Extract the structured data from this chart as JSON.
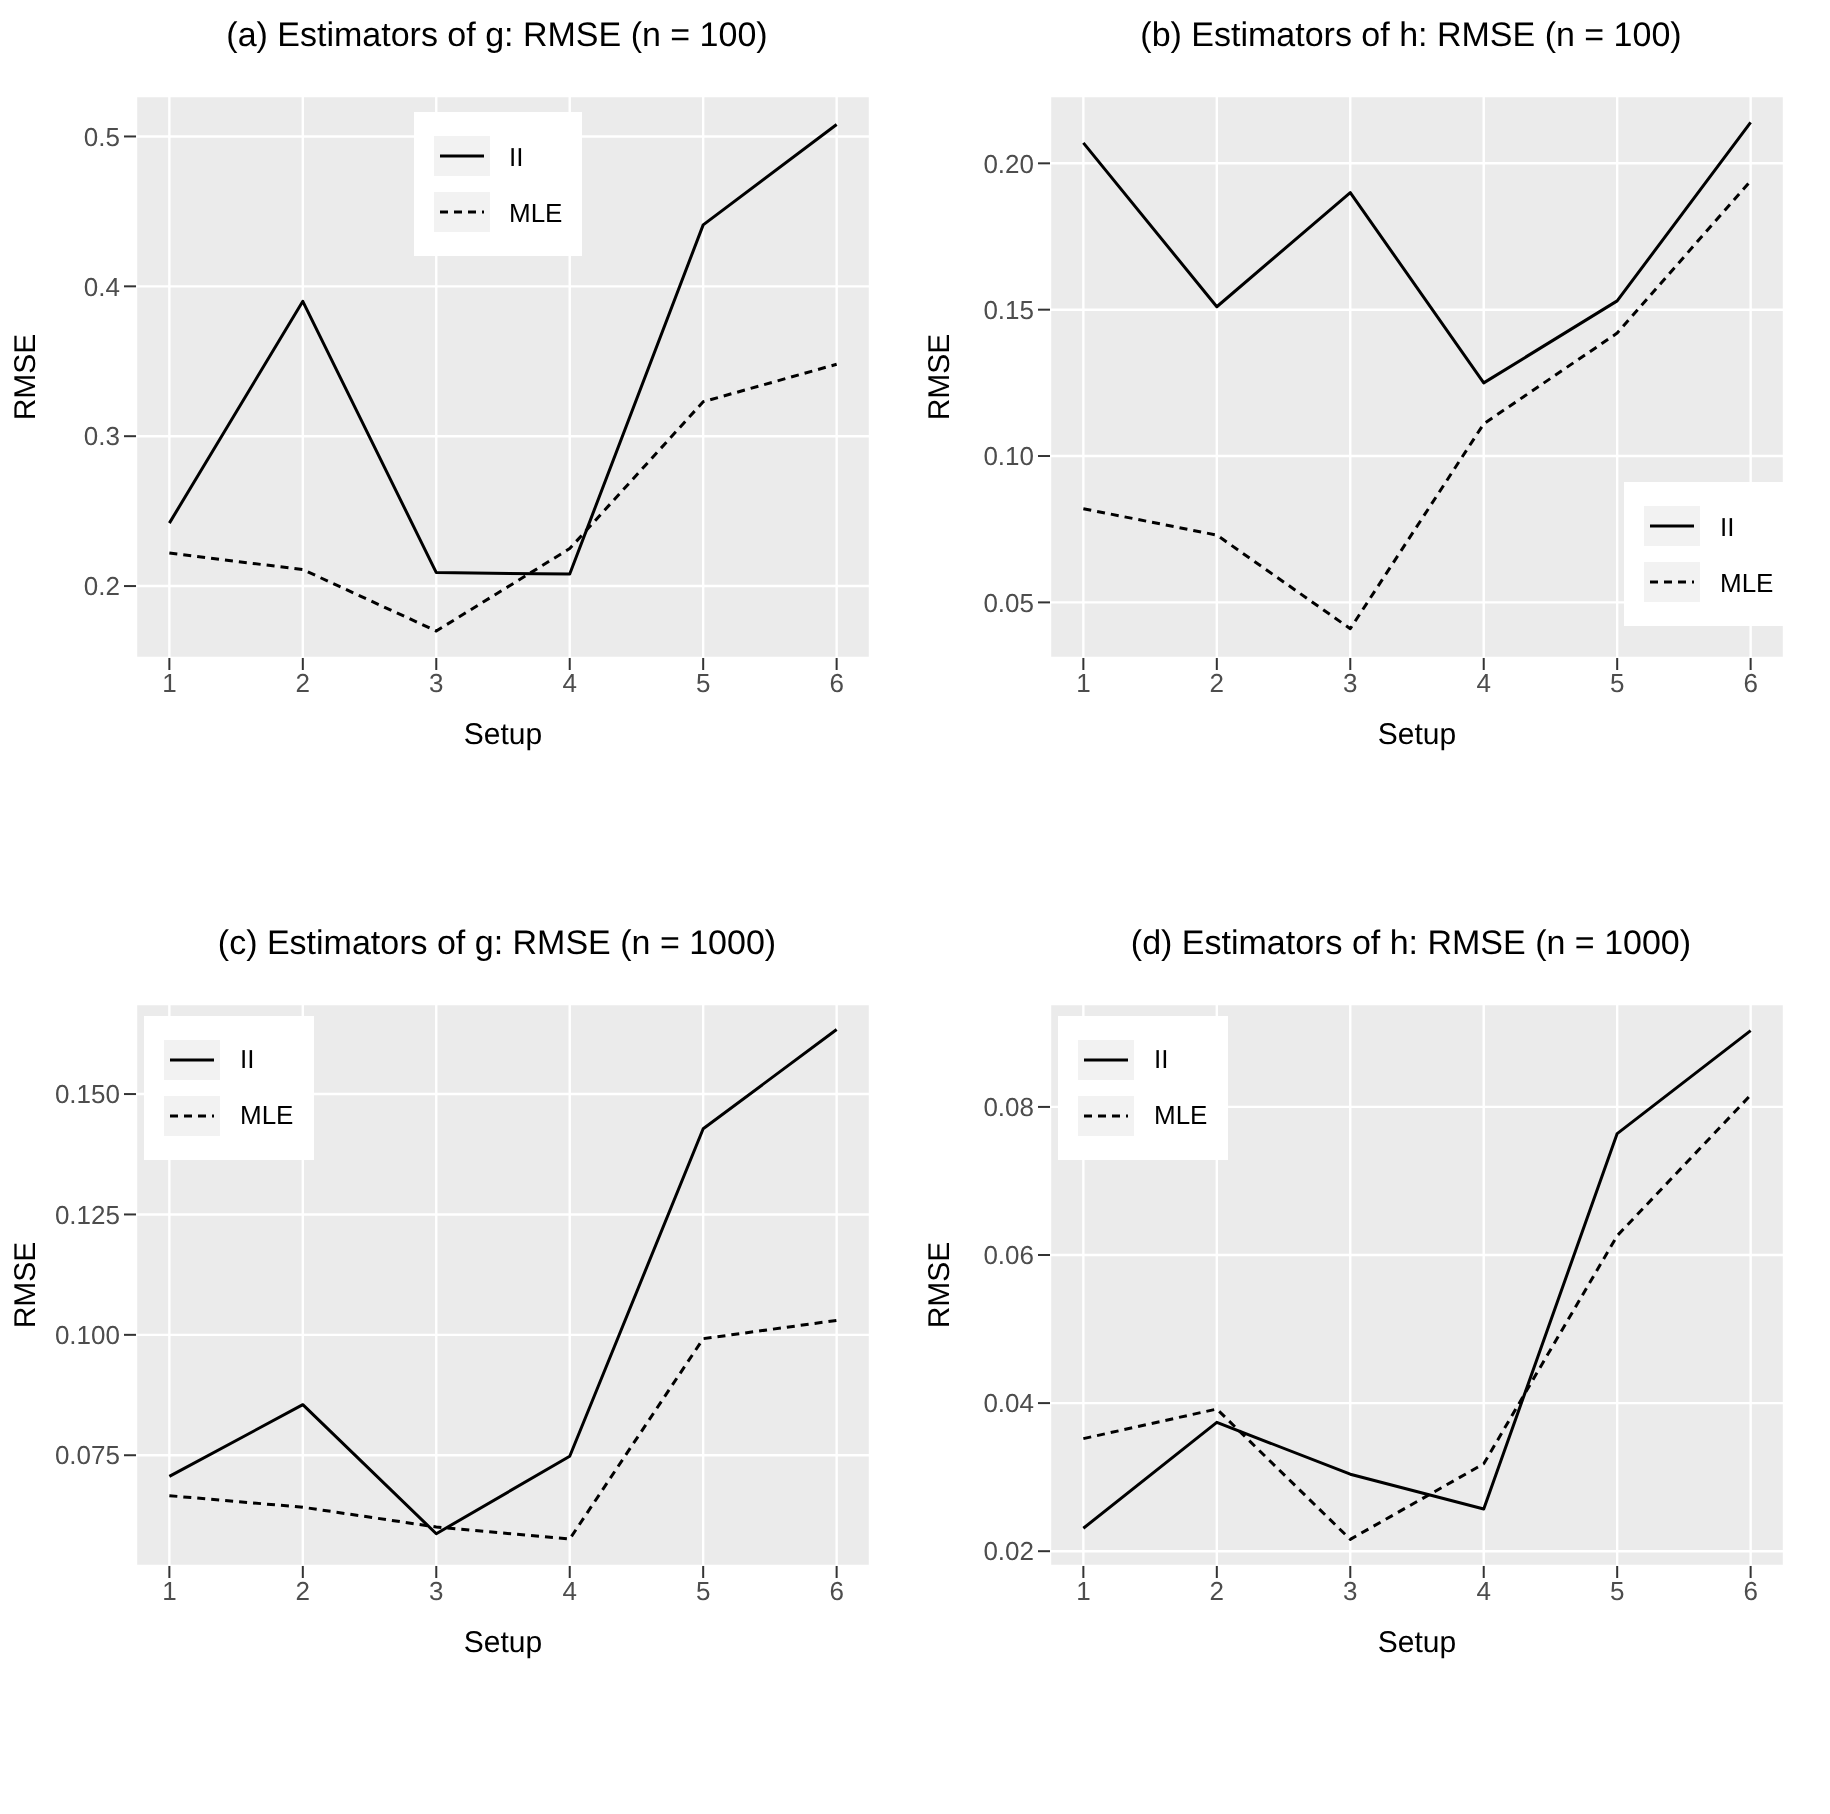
{
  "chart_data": [
    {
      "type": "line",
      "title": "(a) Estimators of g: RMSE (n = 100)",
      "xlabel": "Setup",
      "ylabel": "RMSE",
      "x": [
        1,
        2,
        3,
        4,
        5,
        6
      ],
      "xlim": [
        0.75,
        6.25
      ],
      "xticks": [
        1,
        2,
        3,
        4,
        5,
        6
      ],
      "ylim": [
        0.152,
        0.527
      ],
      "yticks": [
        0.2,
        0.3,
        0.4,
        0.5
      ],
      "grid": true,
      "legend": "top",
      "series": [
        {
          "name": "II",
          "color": "#000000",
          "line_style": "solid",
          "values": [
            0.242,
            0.39,
            0.209,
            0.208,
            0.441,
            0.508
          ]
        },
        {
          "name": "MLE",
          "color": "#000000",
          "line_style": "dashed",
          "values": [
            0.222,
            0.211,
            0.17,
            0.225,
            0.323,
            0.348
          ]
        }
      ]
    },
    {
      "type": "line",
      "title": "(b) Estimators of h: RMSE (n = 100)",
      "xlabel": "Setup",
      "ylabel": "RMSE",
      "x": [
        1,
        2,
        3,
        4,
        5,
        6
      ],
      "xlim": [
        0.75,
        6.25
      ],
      "xticks": [
        1,
        2,
        3,
        4,
        5,
        6
      ],
      "ylim": [
        0.031,
        0.223
      ],
      "yticks": [
        {
          "value": 0.05,
          "label": "0.05"
        },
        {
          "value": 0.1,
          "label": "0.10"
        },
        {
          "value": 0.15,
          "label": "0.15"
        },
        {
          "value": 0.2,
          "label": "0.20"
        }
      ],
      "grid": true,
      "legend": "bottom right",
      "series": [
        {
          "name": "II",
          "color": "#000000",
          "line_style": "solid",
          "values": [
            0.207,
            0.151,
            0.19,
            0.125,
            0.153,
            0.214
          ]
        },
        {
          "name": "MLE",
          "color": "#000000",
          "line_style": "dashed",
          "values": [
            0.082,
            0.073,
            0.041,
            0.111,
            0.142,
            0.194
          ]
        }
      ]
    },
    {
      "type": "line",
      "title": "(c) Estimators of g: RMSE (n = 1000)",
      "xlabel": "Setup",
      "ylabel": "RMSE",
      "x": [
        1,
        2,
        3,
        4,
        5,
        6
      ],
      "xlim": [
        0.75,
        6.25
      ],
      "xticks": [
        1,
        2,
        3,
        4,
        5,
        6
      ],
      "ylim": [
        0.052,
        0.1687
      ],
      "yticks": [
        {
          "value": 0.075,
          "label": "0.075"
        },
        {
          "value": 0.1,
          "label": "0.100"
        },
        {
          "value": 0.125,
          "label": "0.125"
        },
        {
          "value": 0.15,
          "label": "0.150"
        }
      ],
      "grid": true,
      "legend": "top left",
      "series": [
        {
          "name": "II",
          "color": "#000000",
          "line_style": "solid",
          "values": [
            0.0706,
            0.0855,
            0.0587,
            0.0748,
            0.1428,
            0.1634
          ]
        },
        {
          "name": "MLE",
          "color": "#000000",
          "line_style": "dashed",
          "values": [
            0.0666,
            0.0642,
            0.0601,
            0.0576,
            0.0992,
            0.103
          ]
        }
      ]
    },
    {
      "type": "line",
      "title": "(d) Estimators of h: RMSE (n = 1000)",
      "xlabel": "Setup",
      "ylabel": "RMSE",
      "x": [
        1,
        2,
        3,
        4,
        5,
        6
      ],
      "xlim": [
        0.75,
        6.25
      ],
      "xticks": [
        1,
        2,
        3,
        4,
        5,
        6
      ],
      "ylim": [
        0.018,
        0.0939
      ],
      "yticks": [
        {
          "value": 0.02,
          "label": "0.02"
        },
        {
          "value": 0.04,
          "label": "0.04"
        },
        {
          "value": 0.06,
          "label": "0.06"
        },
        {
          "value": 0.08,
          "label": "0.08"
        }
      ],
      "grid": true,
      "legend": "top left",
      "series": [
        {
          "name": "II",
          "color": "#000000",
          "line_style": "solid",
          "values": [
            0.0231,
            0.0374,
            0.0304,
            0.0257,
            0.0764,
            0.0903
          ]
        },
        {
          "name": "MLE",
          "color": "#000000",
          "line_style": "dashed",
          "values": [
            0.0352,
            0.0392,
            0.0216,
            0.0318,
            0.0626,
            0.0816
          ]
        }
      ]
    }
  ]
}
